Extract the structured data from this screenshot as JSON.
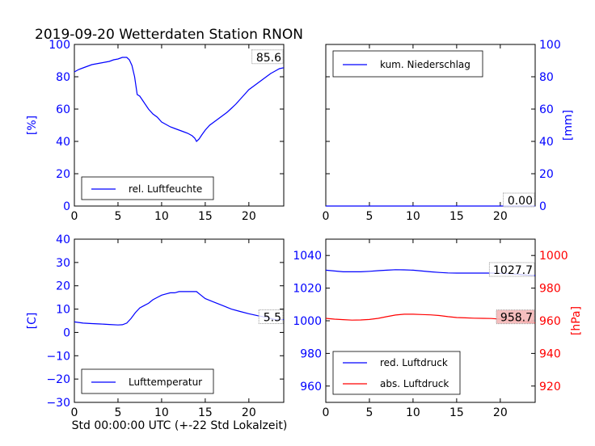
{
  "figure": {
    "title": "2019-09-20 Wetterdaten Station RNON",
    "xlabel": "Std 00:00:00 UTC (+-22 Std Lokalzeit)"
  },
  "chart_data": [
    {
      "id": "humidity",
      "type": "line",
      "ylabel": "[%]",
      "xlim": [
        0,
        24
      ],
      "ylim": [
        0,
        100
      ],
      "xticks": [
        0,
        5,
        10,
        15,
        20
      ],
      "yticks": [
        0,
        20,
        40,
        60,
        80,
        100
      ],
      "legend_placement": "lower-left",
      "series": [
        {
          "name": "rel. Luftfeuchte",
          "color": "#0000ff",
          "x": [
            0,
            0.5,
            1,
            1.5,
            2,
            2.5,
            3,
            3.5,
            4,
            4.5,
            5,
            5.5,
            6,
            6.3,
            6.6,
            6.9,
            7.2,
            7.5,
            8,
            8.5,
            9,
            9.5,
            10,
            10.5,
            11,
            11.5,
            12,
            12.5,
            13,
            13.5,
            13.8,
            14,
            14.3,
            14.6,
            15,
            15.5,
            16,
            16.5,
            17,
            17.5,
            18,
            18.5,
            19,
            19.5,
            20,
            20.5,
            21,
            21.5,
            22,
            22.5,
            23,
            23.5,
            24
          ],
          "y": [
            83,
            84.5,
            85.5,
            86.5,
            87.5,
            88,
            88.5,
            89,
            89.5,
            90.5,
            91,
            92,
            92,
            90.5,
            87,
            80,
            69,
            68,
            64,
            60,
            57,
            55,
            52,
            50.5,
            49,
            48,
            47,
            46,
            45,
            43.5,
            42,
            40,
            41.5,
            44,
            47,
            50,
            52,
            54,
            56,
            58,
            60.5,
            63,
            66,
            69,
            72,
            74,
            76,
            78,
            80,
            82,
            83.5,
            85,
            85.6
          ]
        }
      ],
      "last_value_label": "85.6"
    },
    {
      "id": "precipitation",
      "type": "line",
      "ylabel": "[mm]",
      "xlim": [
        0,
        24
      ],
      "ylim": [
        0,
        100
      ],
      "xticks": [
        0,
        5,
        10,
        15,
        20
      ],
      "yticks": [
        0,
        20,
        40,
        60,
        80,
        100
      ],
      "legend_placement": "upper-left",
      "series": [
        {
          "name": "kum. Niederschlag",
          "color": "#0000ff",
          "x": [
            0,
            24
          ],
          "y": [
            0,
            0
          ]
        }
      ],
      "last_value_label": "0.00"
    },
    {
      "id": "temperature",
      "type": "line",
      "ylabel": "[C]",
      "xlim": [
        0,
        24
      ],
      "ylim": [
        -30,
        40
      ],
      "xticks": [
        0,
        5,
        10,
        15,
        20
      ],
      "yticks": [
        -30,
        -20,
        -10,
        0,
        10,
        20,
        30,
        40
      ],
      "legend_placement": "lower-left",
      "series": [
        {
          "name": "Lufttemperatur",
          "color": "#0000ff",
          "x": [
            0,
            1,
            2,
            3,
            4,
            5,
            5.5,
            6,
            6.5,
            7,
            7.5,
            8,
            8.5,
            9,
            9.5,
            10,
            10.5,
            11,
            11.5,
            12,
            12.5,
            13,
            13.5,
            14,
            14.5,
            15,
            16,
            17,
            18,
            19,
            20,
            21,
            22,
            22.5,
            23,
            23.5,
            24
          ],
          "y": [
            4.5,
            4,
            3.8,
            3.6,
            3.4,
            3.2,
            3.3,
            4,
            6,
            8.5,
            10.5,
            11.5,
            12.5,
            14,
            15,
            16,
            16.5,
            17,
            17,
            17.5,
            17.5,
            17.5,
            17.5,
            17.5,
            16,
            14.5,
            13,
            11.5,
            10,
            9,
            8,
            7.2,
            6.5,
            6,
            5.5,
            5.5,
            5.5
          ]
        }
      ],
      "last_value_label": "5.5"
    },
    {
      "id": "pressure",
      "type": "line",
      "ylabel": "[hPa]",
      "xlim": [
        0,
        24
      ],
      "ylim": [
        950,
        1050
      ],
      "y2lim": [
        910,
        1010
      ],
      "xticks": [
        0,
        5,
        10,
        15,
        20
      ],
      "yticks": [
        960,
        980,
        1000,
        1020,
        1040
      ],
      "y2ticks": [
        920,
        940,
        960,
        980,
        1000
      ],
      "legend_placement": "lower-left",
      "series": [
        {
          "name": "red. Luftdruck",
          "color": "#0000ff",
          "axis": "left",
          "x": [
            0,
            1,
            2,
            3,
            4,
            5,
            6,
            7,
            8,
            9,
            10,
            11,
            12,
            13,
            14,
            15,
            16,
            17,
            18,
            19,
            20,
            21,
            22,
            23,
            24
          ],
          "y": [
            1031,
            1030.5,
            1030,
            1030,
            1030,
            1030.3,
            1030.7,
            1031,
            1031.3,
            1031.2,
            1031,
            1030.5,
            1030,
            1029.6,
            1029.3,
            1029.2,
            1029.2,
            1029.2,
            1029.2,
            1029.2,
            1029,
            1028.8,
            1028.5,
            1028,
            1027.7
          ]
        },
        {
          "name": "abs. Luftdruck",
          "color": "#ff0000",
          "axis": "right",
          "x": [
            0,
            1,
            2,
            3,
            4,
            5,
            6,
            7,
            8,
            9,
            10,
            11,
            12,
            13,
            14,
            15,
            16,
            17,
            18,
            19,
            20,
            21,
            22,
            23,
            24
          ],
          "y": [
            961.5,
            961,
            960.7,
            960.4,
            960.5,
            960.8,
            961.5,
            962.5,
            963.5,
            964,
            964,
            963.8,
            963.6,
            963.2,
            962.5,
            962,
            961.8,
            961.6,
            961.5,
            961.4,
            961,
            960.5,
            960,
            959.3,
            958.7
          ]
        }
      ],
      "last_value_labels": [
        "1027.7",
        "958.7"
      ]
    }
  ],
  "colors": {
    "left_axis": "#0000ff",
    "right_axis_pressure": "#ff0000",
    "abs_label_bg": "#f4b8b8"
  }
}
